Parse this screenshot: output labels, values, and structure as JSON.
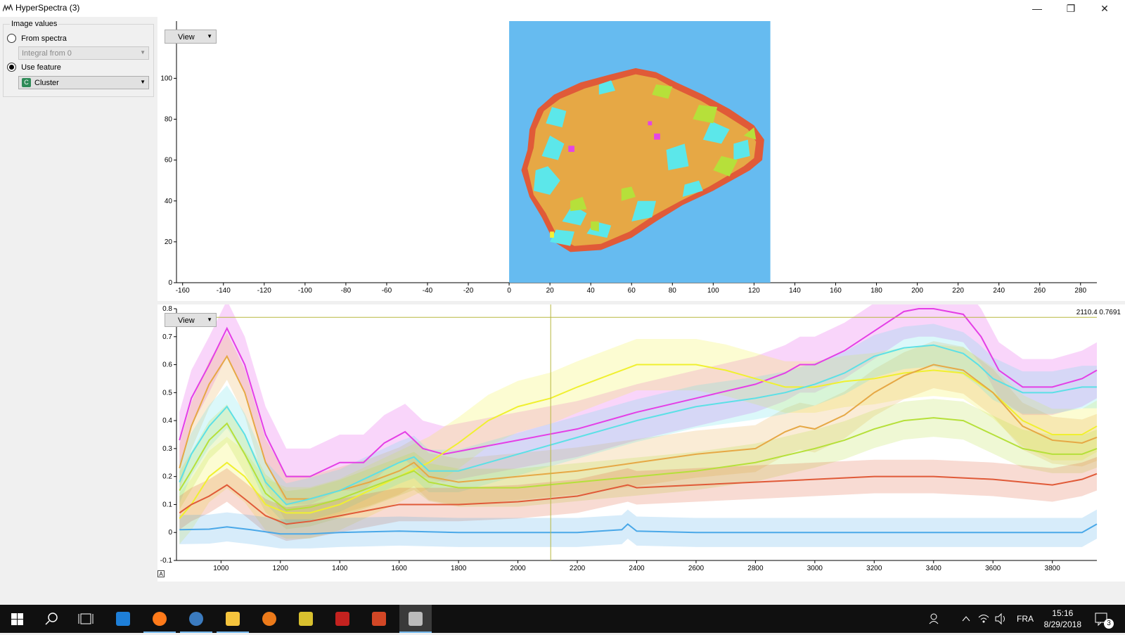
{
  "window": {
    "title": "HyperSpectra (3)",
    "minimize": "—",
    "maximize": "❐",
    "close": "✕"
  },
  "sidebar": {
    "group_title": "Image values",
    "from_spectra_label": "From spectra",
    "integral_value": "Integral from 0",
    "use_feature_label": "Use feature",
    "feature_value": "Cluster",
    "feature_icon_letter": "C"
  },
  "image_plot": {
    "view_label": "View",
    "x_ticks": [
      "-160",
      "-140",
      "-120",
      "-100",
      "-80",
      "-60",
      "-40",
      "-20",
      "0",
      "20",
      "40",
      "60",
      "80",
      "100",
      "120",
      "140",
      "160",
      "180",
      "200",
      "220",
      "240",
      "260",
      "280"
    ],
    "y_ticks": [
      "0",
      "20",
      "40",
      "60",
      "80",
      "100"
    ],
    "colors": {
      "background": "#66bbf0",
      "rim": "#e05a38",
      "core": "#e6a845",
      "cyan": "#5ce7ea",
      "lime": "#b6e03a",
      "magenta": "#e445e6",
      "yellow": "#f2f237"
    }
  },
  "spectra_plot": {
    "view_label": "View",
    "cursor_readout": "2110.4 0.7691",
    "x_ticks": [
      "1000",
      "1200",
      "1400",
      "1600",
      "1800",
      "2000",
      "2200",
      "2400",
      "2600",
      "2800",
      "3000",
      "3200",
      "3400",
      "3600",
      "3800"
    ],
    "y_ticks": [
      "-0.1",
      "0",
      "0.1",
      "0.2",
      "0.3",
      "0.4",
      "0.5",
      "0.6",
      "0.7",
      "0.8"
    ],
    "cursor": {
      "x": 2110.4,
      "y": 0.7691
    },
    "corner_button": "A"
  },
  "chart_data": {
    "type": "line",
    "title": "",
    "xlabel": "",
    "ylabel": "",
    "xlim": [
      850,
      3950
    ],
    "ylim": [
      -0.1,
      0.8
    ],
    "grid": false,
    "series": [
      {
        "color": "#e43fe6",
        "x": [
          860,
          900,
          960,
          1020,
          1080,
          1150,
          1220,
          1300,
          1400,
          1480,
          1550,
          1620,
          1680,
          1750,
          1850,
          2000,
          2200,
          2400,
          2600,
          2800,
          2900,
          2950,
          3000,
          3100,
          3200,
          3300,
          3350,
          3400,
          3500,
          3560,
          3620,
          3700,
          3800,
          3900,
          3950
        ],
        "y": [
          0.33,
          0.48,
          0.6,
          0.73,
          0.6,
          0.35,
          0.2,
          0.2,
          0.25,
          0.25,
          0.32,
          0.36,
          0.3,
          0.28,
          0.3,
          0.33,
          0.37,
          0.43,
          0.48,
          0.53,
          0.57,
          0.6,
          0.6,
          0.65,
          0.72,
          0.79,
          0.8,
          0.8,
          0.78,
          0.7,
          0.58,
          0.52,
          0.52,
          0.55,
          0.58
        ]
      },
      {
        "color": "#f0f030",
        "x": [
          860,
          900,
          960,
          1020,
          1080,
          1150,
          1220,
          1300,
          1400,
          1500,
          1600,
          1700,
          1800,
          1900,
          2000,
          2110,
          2200,
          2300,
          2400,
          2500,
          2600,
          2700,
          2800,
          2900,
          3000,
          3100,
          3200,
          3300,
          3400,
          3500,
          3600,
          3700,
          3800,
          3900,
          3950
        ],
        "y": [
          0.05,
          0.1,
          0.2,
          0.25,
          0.2,
          0.1,
          0.07,
          0.07,
          0.1,
          0.15,
          0.2,
          0.25,
          0.32,
          0.4,
          0.45,
          0.48,
          0.52,
          0.56,
          0.6,
          0.6,
          0.6,
          0.58,
          0.55,
          0.52,
          0.52,
          0.54,
          0.55,
          0.57,
          0.58,
          0.57,
          0.5,
          0.4,
          0.35,
          0.35,
          0.38
        ]
      },
      {
        "color": "#e6a845",
        "x": [
          860,
          900,
          960,
          1020,
          1080,
          1150,
          1220,
          1300,
          1400,
          1500,
          1600,
          1650,
          1700,
          1800,
          2000,
          2200,
          2400,
          2600,
          2800,
          2900,
          2950,
          3000,
          3100,
          3200,
          3300,
          3400,
          3500,
          3600,
          3700,
          3800,
          3900,
          3950
        ],
        "y": [
          0.23,
          0.38,
          0.53,
          0.63,
          0.5,
          0.25,
          0.12,
          0.12,
          0.15,
          0.18,
          0.22,
          0.25,
          0.2,
          0.18,
          0.2,
          0.22,
          0.25,
          0.28,
          0.3,
          0.36,
          0.38,
          0.37,
          0.42,
          0.5,
          0.56,
          0.6,
          0.58,
          0.5,
          0.38,
          0.33,
          0.32,
          0.34
        ]
      },
      {
        "color": "#5ce0e6",
        "x": [
          860,
          900,
          960,
          1020,
          1080,
          1150,
          1220,
          1300,
          1400,
          1500,
          1600,
          1650,
          1700,
          1800,
          2000,
          2200,
          2400,
          2600,
          2800,
          2900,
          3000,
          3100,
          3200,
          3300,
          3400,
          3500,
          3550,
          3600,
          3700,
          3800,
          3900,
          3950
        ],
        "y": [
          0.18,
          0.28,
          0.38,
          0.45,
          0.35,
          0.18,
          0.1,
          0.12,
          0.15,
          0.2,
          0.25,
          0.27,
          0.22,
          0.22,
          0.28,
          0.34,
          0.4,
          0.45,
          0.48,
          0.5,
          0.53,
          0.57,
          0.63,
          0.66,
          0.67,
          0.64,
          0.6,
          0.55,
          0.5,
          0.5,
          0.52,
          0.52
        ]
      },
      {
        "color": "#b6e03a",
        "x": [
          860,
          900,
          960,
          1020,
          1080,
          1150,
          1220,
          1300,
          1400,
          1500,
          1600,
          1650,
          1700,
          1800,
          2000,
          2200,
          2400,
          2600,
          2800,
          3000,
          3100,
          3200,
          3300,
          3400,
          3500,
          3600,
          3700,
          3800,
          3900,
          3950
        ],
        "y": [
          0.15,
          0.22,
          0.33,
          0.39,
          0.28,
          0.14,
          0.08,
          0.09,
          0.12,
          0.16,
          0.2,
          0.22,
          0.18,
          0.16,
          0.16,
          0.18,
          0.2,
          0.22,
          0.25,
          0.3,
          0.33,
          0.37,
          0.4,
          0.41,
          0.4,
          0.35,
          0.3,
          0.28,
          0.28,
          0.3
        ]
      },
      {
        "color": "#e05a38",
        "x": [
          860,
          900,
          960,
          1020,
          1080,
          1150,
          1220,
          1300,
          1400,
          1500,
          1600,
          1700,
          1800,
          2000,
          2200,
          2370,
          2400,
          2600,
          2800,
          3000,
          3200,
          3400,
          3600,
          3700,
          3800,
          3900,
          3950
        ],
        "y": [
          0.07,
          0.1,
          0.13,
          0.17,
          0.12,
          0.06,
          0.03,
          0.04,
          0.06,
          0.08,
          0.1,
          0.1,
          0.1,
          0.11,
          0.13,
          0.17,
          0.16,
          0.17,
          0.18,
          0.19,
          0.2,
          0.2,
          0.19,
          0.18,
          0.17,
          0.19,
          0.21
        ]
      },
      {
        "color": "#4aa8e8",
        "x": [
          860,
          960,
          1020,
          1100,
          1200,
          1300,
          1400,
          1600,
          1800,
          2000,
          2200,
          2350,
          2370,
          2400,
          2600,
          2800,
          3000,
          3200,
          3400,
          3600,
          3800,
          3900,
          3950
        ],
        "y": [
          0.01,
          0.012,
          0.02,
          0.01,
          -0.005,
          -0.005,
          0.0,
          0.005,
          0.0,
          0.0,
          0.0,
          0.01,
          0.03,
          0.005,
          0.0,
          0.0,
          0.0,
          0.0,
          0.0,
          0.0,
          0.0,
          0.0,
          0.03
        ]
      }
    ]
  },
  "taskbar": {
    "icons": [
      "windows-start-icon",
      "search-icon",
      "task-view-icon",
      "edge-icon",
      "firefox-icon",
      "thunderbird-icon",
      "file-explorer-icon",
      "blender-icon",
      "toolbox-app-icon",
      "acrobat-icon",
      "powerpoint-icon",
      "hyperspectra-app-icon"
    ],
    "language": "FRA",
    "time": "15:16",
    "date": "8/29/2018",
    "notifications": "3"
  }
}
